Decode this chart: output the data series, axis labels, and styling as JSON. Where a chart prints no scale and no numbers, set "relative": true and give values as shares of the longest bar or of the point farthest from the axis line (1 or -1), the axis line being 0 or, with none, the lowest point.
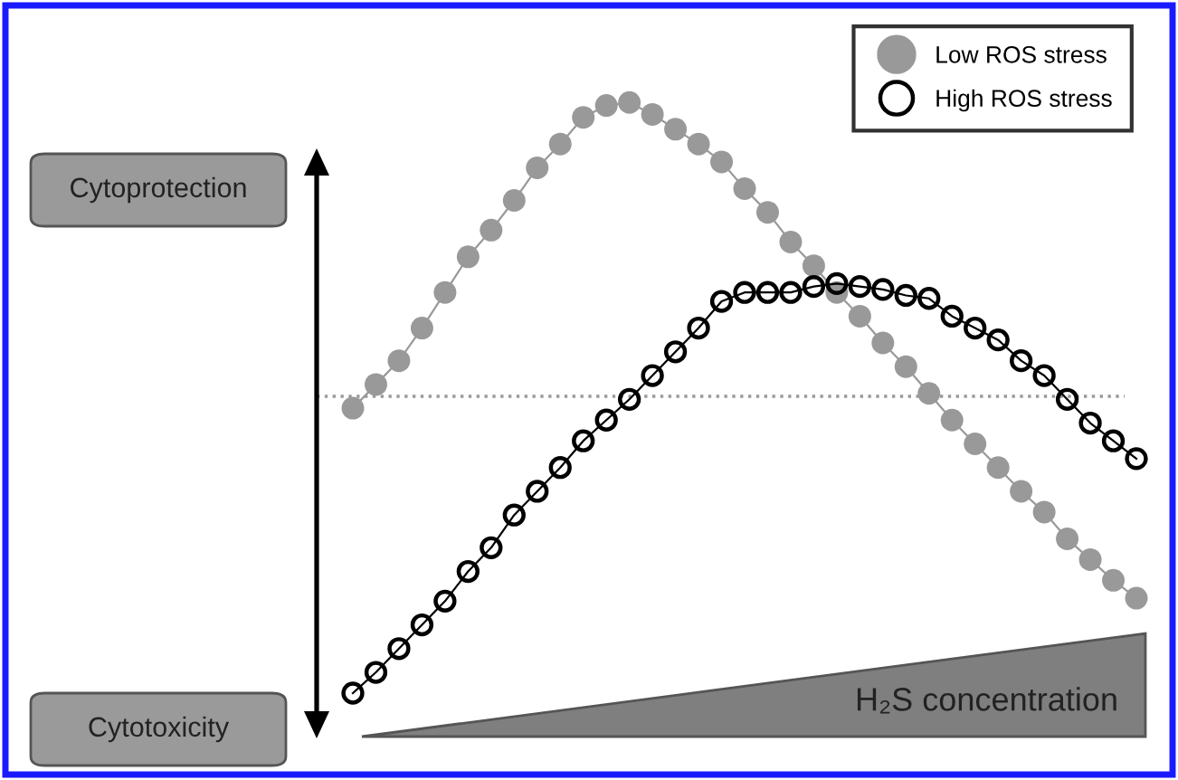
{
  "chart_data": {
    "type": "line",
    "relative": true,
    "xlabel": "H₂S concentration",
    "legend": "top right",
    "categories": [
      null,
      null,
      null,
      null,
      null,
      null,
      null,
      null,
      null,
      null,
      null,
      null,
      null,
      null,
      null,
      null,
      null,
      null,
      null,
      null,
      null,
      null,
      null,
      null,
      null,
      null,
      null,
      null,
      null,
      null,
      null,
      null,
      null,
      null,
      null
    ],
    "annotations": [
      "Cytoprotection",
      "Cytotoxicity"
    ],
    "ref_lines": [
      {
        "axis": "y",
        "value": 0,
        "color": "#999999",
        "line_style": "dotted"
      }
    ],
    "series": [
      {
        "name": "Low ROS stress",
        "color": "#999999",
        "marker": "circle",
        "values": [
          -0.04,
          0.04,
          0.12,
          0.23,
          0.35,
          0.47,
          0.56,
          0.66,
          0.77,
          0.85,
          0.94,
          0.98,
          0.99,
          0.95,
          0.9,
          0.85,
          0.79,
          0.7,
          0.62,
          0.52,
          0.44,
          0.35,
          0.27,
          0.18,
          0.1,
          0.01,
          -0.08,
          -0.16,
          -0.24,
          -0.32,
          -0.39,
          -0.48,
          -0.55,
          -0.62,
          -0.68
        ]
      },
      {
        "name": "High ROS stress",
        "color": "#000000",
        "marker": "open circle",
        "values": [
          -1.0,
          -0.93,
          -0.85,
          -0.77,
          -0.69,
          -0.59,
          -0.51,
          -0.4,
          -0.32,
          -0.24,
          -0.15,
          -0.08,
          -0.01,
          0.07,
          0.15,
          0.23,
          0.32,
          0.35,
          0.35,
          0.35,
          0.37,
          0.38,
          0.37,
          0.36,
          0.34,
          0.33,
          0.27,
          0.23,
          0.19,
          0.12,
          0.07,
          -0.01,
          -0.09,
          -0.15,
          -0.21
        ]
      }
    ]
  }
}
